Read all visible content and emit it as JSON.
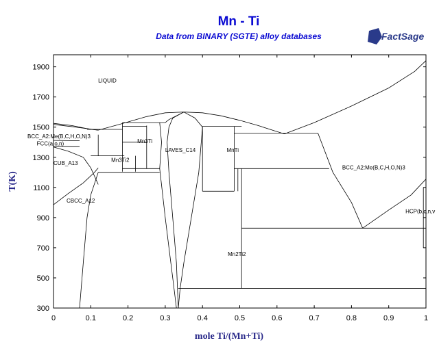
{
  "chart_data": {
    "type": "line",
    "title": "Mn - Ti",
    "subtitle": "Data from BINARY (SGTE) alloy databases",
    "logo_text": "FactSage",
    "xlabel": "mole Ti/(Mn+Ti)",
    "ylabel": "T(K)",
    "xlim": [
      0,
      1
    ],
    "ylim": [
      300,
      1980
    ],
    "x_ticks": [
      "0",
      "0.1",
      "0.2",
      "0.3",
      "0.4",
      "0.5",
      "0.6",
      "0.7",
      "0.8",
      "0.9",
      "1"
    ],
    "y_ticks": [
      "300",
      "500",
      "700",
      "900",
      "1100",
      "1300",
      "1500",
      "1700",
      "1900"
    ],
    "grid": false,
    "phase_labels": [
      {
        "text": "LIQUID",
        "x": 0.12,
        "y": 1795
      },
      {
        "text": "BCC_A2:Me(B,C,H,O,N)3",
        "x": -0.07,
        "y": 1425
      },
      {
        "text": "FCC(a,o,n)",
        "x": -0.045,
        "y": 1378
      },
      {
        "text": "CUB_A13",
        "x": 0.0,
        "y": 1250
      },
      {
        "text": "CBCC_A12",
        "x": 0.035,
        "y": 1000
      },
      {
        "text": "Mn3Ti",
        "x": 0.225,
        "y": 1395
      },
      {
        "text": "Mn3Ti2",
        "x": 0.155,
        "y": 1270
      },
      {
        "text": "LAVES_C14",
        "x": 0.3,
        "y": 1335
      },
      {
        "text": "MnTi",
        "x": 0.465,
        "y": 1335
      },
      {
        "text": "BCC_A2:Me(B,C,H,O,N)3",
        "x": 0.775,
        "y": 1220
      },
      {
        "text": "HCP(b,c,n,v",
        "x": 0.945,
        "y": 930
      },
      {
        "text": "Mn2Ti2",
        "x": 0.468,
        "y": 645
      }
    ],
    "phase_boundaries": [
      {
        "name": "liquidus-left",
        "points": [
          [
            0,
            1525
          ],
          [
            0.05,
            1510
          ],
          [
            0.1,
            1485
          ],
          [
            0.12,
            1480
          ],
          [
            0.18,
            1520
          ],
          [
            0.25,
            1570
          ],
          [
            0.3,
            1595
          ],
          [
            0.35,
            1600
          ],
          [
            0.4,
            1595
          ],
          [
            0.45,
            1575
          ],
          [
            0.5,
            1545
          ],
          [
            0.55,
            1510
          ],
          [
            0.6,
            1470
          ],
          [
            0.62,
            1455
          ]
        ]
      },
      {
        "name": "liquidus-right",
        "points": [
          [
            0.62,
            1455
          ],
          [
            0.7,
            1530
          ],
          [
            0.8,
            1640
          ],
          [
            0.9,
            1760
          ],
          [
            0.97,
            1870
          ],
          [
            1.0,
            1941
          ]
        ]
      },
      {
        "name": "bcc-mn-boundary-top",
        "points": [
          [
            0,
            1518
          ],
          [
            0.06,
            1500
          ],
          [
            0.12,
            1480
          ]
        ]
      },
      {
        "name": "bcc-mn-solvus",
        "points": [
          [
            0,
            1412
          ],
          [
            0.07,
            1410
          ]
        ]
      },
      {
        "name": "fcc-lower",
        "points": [
          [
            0,
            1373
          ],
          [
            0.05,
            1370
          ],
          [
            0.07,
            1370
          ]
        ]
      },
      {
        "name": "fcc-to-cub",
        "points": [
          [
            0,
            1368
          ],
          [
            0.04,
            1340
          ],
          [
            0.08,
            1300
          ],
          [
            0.1,
            1230
          ],
          [
            0.12,
            1120
          ]
        ]
      },
      {
        "name": "cub-lower",
        "points": [
          [
            0,
            985
          ],
          [
            0.04,
            1060
          ],
          [
            0.08,
            1130
          ],
          [
            0.11,
            1200
          ],
          [
            0.12,
            1230
          ]
        ]
      },
      {
        "name": "cbcc-solvus",
        "points": [
          [
            0.07,
            300
          ],
          [
            0.08,
            600
          ],
          [
            0.09,
            900
          ],
          [
            0.1,
            1050
          ],
          [
            0.12,
            1200
          ]
        ]
      },
      {
        "name": "cub-eutectoid",
        "points": [
          [
            0.1,
            1310
          ],
          [
            0.19,
            1310
          ]
        ]
      },
      {
        "name": "mn3ti2-box-left",
        "points": [
          [
            0.12,
            1310
          ],
          [
            0.12,
            1450
          ]
        ]
      },
      {
        "name": "bcc-eutectic",
        "points": [
          [
            0.09,
            1485
          ],
          [
            0.185,
            1485
          ]
        ]
      },
      {
        "name": "mn3ti-peritectic",
        "points": [
          [
            0.185,
            1530
          ],
          [
            0.3,
            1530
          ]
        ]
      },
      {
        "name": "mn3ti-left",
        "points": [
          [
            0.185,
            1530
          ],
          [
            0.185,
            1205
          ]
        ]
      },
      {
        "name": "mn3ti-right",
        "points": [
          [
            0.25,
            1510
          ],
          [
            0.25,
            1225
          ]
        ]
      },
      {
        "name": "mn3ti2-right",
        "points": [
          [
            0.22,
            1310
          ],
          [
            0.22,
            1205
          ]
        ]
      },
      {
        "name": "bcc-box-lines-a",
        "points": [
          [
            0.185,
            1505
          ],
          [
            0.25,
            1505
          ]
        ]
      },
      {
        "name": "bcc-box-lines-b",
        "points": [
          [
            0.185,
            1400
          ],
          [
            0.25,
            1400
          ]
        ]
      },
      {
        "name": "mn3ti-bottom",
        "points": [
          [
            0.185,
            1225
          ],
          [
            0.285,
            1225
          ]
        ]
      },
      {
        "name": "low-eutectoid",
        "points": [
          [
            0.12,
            1200
          ],
          [
            0.285,
            1200
          ]
        ]
      },
      {
        "name": "laves-left",
        "points": [
          [
            0.285,
            1530
          ],
          [
            0.29,
            1400
          ],
          [
            0.285,
            1225
          ],
          [
            0.3,
            900
          ],
          [
            0.31,
            700
          ],
          [
            0.32,
            500
          ],
          [
            0.33,
            300
          ]
        ]
      },
      {
        "name": "laves-left-liquid",
        "points": [
          [
            0.3,
            1530
          ],
          [
            0.31,
            1550
          ],
          [
            0.33,
            1575
          ],
          [
            0.35,
            1600
          ]
        ]
      },
      {
        "name": "laves-inner-left",
        "points": [
          [
            0.35,
            1600
          ],
          [
            0.32,
            1560
          ],
          [
            0.31,
            1500
          ],
          [
            0.305,
            1400
          ],
          [
            0.31,
            1200
          ],
          [
            0.32,
            900
          ],
          [
            0.33,
            600
          ],
          [
            0.335,
            300
          ]
        ]
      },
      {
        "name": "laves-right",
        "points": [
          [
            0.35,
            1600
          ],
          [
            0.38,
            1560
          ],
          [
            0.4,
            1500
          ],
          [
            0.39,
            1200
          ],
          [
            0.37,
            900
          ],
          [
            0.35,
            600
          ],
          [
            0.34,
            430
          ],
          [
            0.335,
            300
          ]
        ]
      },
      {
        "name": "mnti-peritectic",
        "points": [
          [
            0.4,
            1505
          ],
          [
            0.505,
            1505
          ]
        ]
      },
      {
        "name": "mnti-left",
        "points": [
          [
            0.4,
            1505
          ],
          [
            0.4,
            1075
          ]
        ]
      },
      {
        "name": "mnti-right",
        "points": [
          [
            0.485,
            1505
          ],
          [
            0.485,
            1075
          ]
        ]
      },
      {
        "name": "mnti-bottom",
        "points": [
          [
            0.4,
            1075
          ],
          [
            0.485,
            1075
          ]
        ]
      },
      {
        "name": "mn2ti-left",
        "points": [
          [
            0.505,
            1225
          ],
          [
            0.505,
            430
          ]
        ]
      },
      {
        "name": "mn2ti-left-b",
        "points": [
          [
            0.495,
            1225
          ],
          [
            0.495,
            1075
          ]
        ]
      },
      {
        "name": "bcc-ti-eutectic-top",
        "points": [
          [
            0.485,
            1460
          ],
          [
            0.71,
            1460
          ]
        ]
      },
      {
        "name": "bcc-ti-eutectic",
        "points": [
          [
            0.485,
            1225
          ],
          [
            0.74,
            1225
          ]
        ]
      },
      {
        "name": "bcc-ti-mid",
        "points": [
          [
            0.505,
            830
          ],
          [
            1.0,
            830
          ]
        ]
      },
      {
        "name": "ti-solvus",
        "points": [
          [
            0.71,
            1460
          ],
          [
            0.75,
            1200
          ],
          [
            0.8,
            1000
          ],
          [
            0.83,
            830
          ]
        ]
      },
      {
        "name": "hcp-transus",
        "points": [
          [
            0.83,
            830
          ],
          [
            0.9,
            950
          ],
          [
            0.96,
            1050
          ],
          [
            1.0,
            1155
          ]
        ]
      },
      {
        "name": "low-eutectoid-line",
        "points": [
          [
            0.335,
            430
          ],
          [
            1.0,
            430
          ]
        ]
      },
      {
        "name": "hcp-boundary",
        "points": [
          [
            0.993,
            1100
          ],
          [
            0.993,
            700
          ]
        ]
      },
      {
        "name": "ti-edge",
        "points": [
          [
            1.0,
            1941
          ],
          [
            1.0,
            300
          ]
        ]
      }
    ]
  }
}
